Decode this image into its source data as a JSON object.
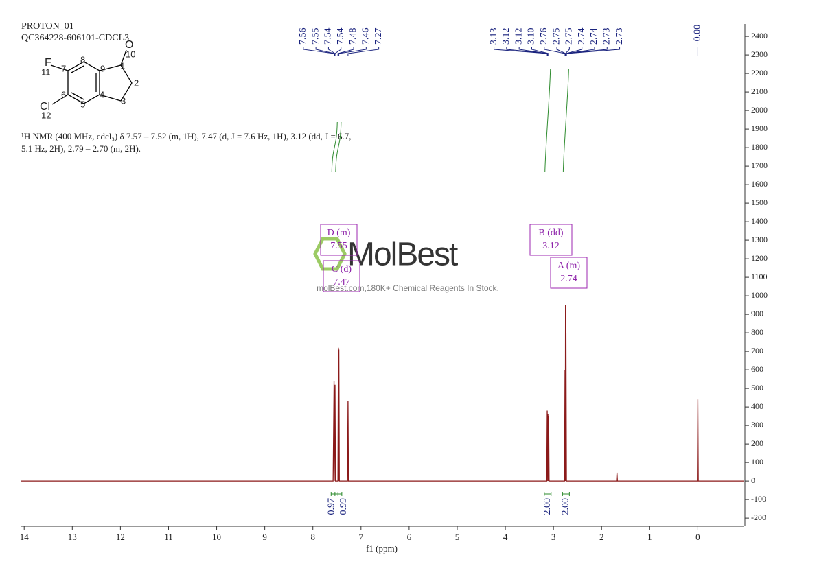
{
  "header": {
    "experiment": "PROTON_01",
    "sample": "QC364228-606101-CDCL3"
  },
  "molecule": {
    "atoms": [
      "F",
      "O",
      "Cl"
    ],
    "numbers": [
      "11",
      "7",
      "8",
      "9",
      "1",
      "10",
      "2",
      "3",
      "4",
      "5",
      "6",
      "12"
    ]
  },
  "description": [
    "¹H NMR (400 MHz, cdcl₃) δ 7.57 – 7.52 (m, 1H), 7.47 (d, J = 7.6 Hz, 1H), 3.12 (dd, J = 6.7,",
    "5.1 Hz, 2H), 2.79 – 2.70 (m, 2H)."
  ],
  "watermark": {
    "brand": "MolBest",
    "tagline": "molBest.com,180K+ Chemical Reagents In Stock."
  },
  "chart_data": {
    "type": "line",
    "x_label": "f1 (ppm)",
    "xlim": [
      14.06,
      -0.95
    ],
    "xticks": [
      14,
      13,
      12,
      11,
      10,
      9,
      8,
      7,
      6,
      5,
      4,
      3,
      2,
      1,
      0
    ],
    "ylim": [
      -244,
      2467
    ],
    "yticks": [
      -200,
      -100,
      0,
      100,
      200,
      300,
      400,
      500,
      600,
      700,
      800,
      900,
      1000,
      1100,
      1200,
      1300,
      1400,
      1500,
      1600,
      1700,
      1800,
      1900,
      2000,
      2100,
      2200,
      2300,
      2400
    ],
    "series": [
      {
        "name": "spectrum",
        "color": "#8b1a1a",
        "x": [
          14.06,
          7.58,
          7.56,
          7.555,
          7.54,
          7.53,
          7.48,
          7.47,
          7.465,
          7.46,
          7.45,
          7.28,
          7.27,
          7.26,
          3.14,
          3.13,
          3.12,
          3.115,
          3.11,
          3.1,
          3.09,
          2.77,
          2.76,
          2.755,
          2.75,
          2.745,
          2.74,
          2.73,
          2.72,
          1.69,
          1.68,
          1.67,
          0.01,
          0,
          -0.01,
          -0.95
        ],
        "values": [
          0,
          0,
          540,
          0,
          520,
          0,
          0,
          720,
          0,
          710,
          0,
          0,
          430,
          0,
          0,
          380,
          0,
          360,
          0,
          350,
          0,
          0,
          600,
          0,
          950,
          0,
          800,
          0,
          0,
          0,
          45,
          0,
          0,
          440,
          0,
          0
        ]
      }
    ],
    "peak_labels": [
      7.56,
      7.55,
      7.54,
      7.54,
      7.48,
      7.46,
      7.27,
      3.13,
      3.12,
      3.12,
      {
        "value": 3.1,
        "label": "3.10"
      },
      2.76,
      2.75,
      2.75,
      2.74,
      2.74,
      2.73,
      2.73,
      {
        "value": 0,
        "label": "-0.00"
      }
    ],
    "integrals": {
      "x": [
        7.55,
        7.47,
        3.12,
        2.74
      ],
      "values": [
        0.97,
        0.99,
        2,
        2
      ],
      "value_labels": [
        "0.97",
        "0.99",
        "2.00",
        "2.00"
      ],
      "color": "#2e8b2e"
    },
    "multiplets": [
      {
        "name": "D (m)",
        "shift": 7.55
      },
      {
        "name": "C (d)",
        "shift": 7.47
      },
      {
        "name": "B (dd)",
        "shift": 3.12
      },
      {
        "name": "A (m)",
        "shift": 2.74
      }
    ]
  }
}
